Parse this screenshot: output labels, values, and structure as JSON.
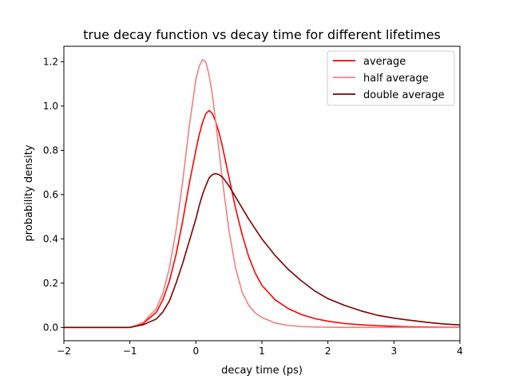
{
  "chart_data": {
    "type": "line",
    "title": "true decay function vs decay time for different lifetimes",
    "xlabel": "decay time (ps)",
    "ylabel": "probability density",
    "xlim": [
      -2,
      4
    ],
    "ylim": [
      -0.06,
      1.27
    ],
    "xticks": [
      -2,
      -1,
      0,
      1,
      2,
      3,
      4
    ],
    "xtick_labels": [
      "−2",
      "−1",
      "0",
      "1",
      "2",
      "3",
      "4"
    ],
    "yticks": [
      0.0,
      0.2,
      0.4,
      0.6,
      0.8,
      1.0,
      1.2
    ],
    "ytick_labels": [
      "0.0",
      "0.2",
      "0.4",
      "0.6",
      "0.8",
      "1.0",
      "1.2"
    ],
    "grid": false,
    "legend_position": "top-right",
    "x": [
      -2.0,
      -1.5,
      -1.0,
      -0.8,
      -0.6,
      -0.5,
      -0.4,
      -0.3,
      -0.2,
      -0.1,
      0.0,
      0.05,
      0.1,
      0.15,
      0.2,
      0.25,
      0.3,
      0.35,
      0.4,
      0.5,
      0.6,
      0.7,
      0.8,
      0.9,
      1.0,
      1.2,
      1.4,
      1.6,
      1.8,
      2.0,
      2.25,
      2.5,
      2.75,
      3.0,
      3.25,
      3.5,
      3.75,
      4.0
    ],
    "series": [
      {
        "name": "average",
        "color": "#ff0000",
        "values": [
          0.0,
          0.0,
          0.0,
          0.018,
          0.068,
          0.125,
          0.21,
          0.33,
          0.48,
          0.65,
          0.8,
          0.87,
          0.925,
          0.965,
          0.98,
          0.965,
          0.93,
          0.88,
          0.82,
          0.68,
          0.54,
          0.42,
          0.32,
          0.245,
          0.19,
          0.125,
          0.085,
          0.058,
          0.04,
          0.028,
          0.018,
          0.012,
          0.008,
          0.005,
          0.003,
          0.002,
          0.001,
          0.001
        ]
      },
      {
        "name": "half average",
        "color": "#f08080",
        "values": [
          0.0,
          0.0,
          0.0,
          0.022,
          0.085,
          0.155,
          0.27,
          0.44,
          0.66,
          0.91,
          1.12,
          1.18,
          1.21,
          1.2,
          1.14,
          1.05,
          0.93,
          0.8,
          0.67,
          0.44,
          0.27,
          0.16,
          0.1,
          0.065,
          0.045,
          0.02,
          0.009,
          0.004,
          0.002,
          0.001,
          0.0,
          0.0,
          0.0,
          0.0,
          0.0,
          0.0,
          0.0,
          0.0
        ]
      },
      {
        "name": "double average",
        "color": "#7f0000",
        "values": [
          0.0,
          0.0,
          0.0,
          0.012,
          0.038,
          0.07,
          0.12,
          0.2,
          0.29,
          0.39,
          0.49,
          0.55,
          0.6,
          0.64,
          0.675,
          0.69,
          0.695,
          0.69,
          0.68,
          0.64,
          0.59,
          0.54,
          0.49,
          0.445,
          0.4,
          0.325,
          0.262,
          0.21,
          0.165,
          0.13,
          0.1,
          0.075,
          0.055,
          0.042,
          0.032,
          0.023,
          0.016,
          0.011
        ]
      }
    ]
  }
}
